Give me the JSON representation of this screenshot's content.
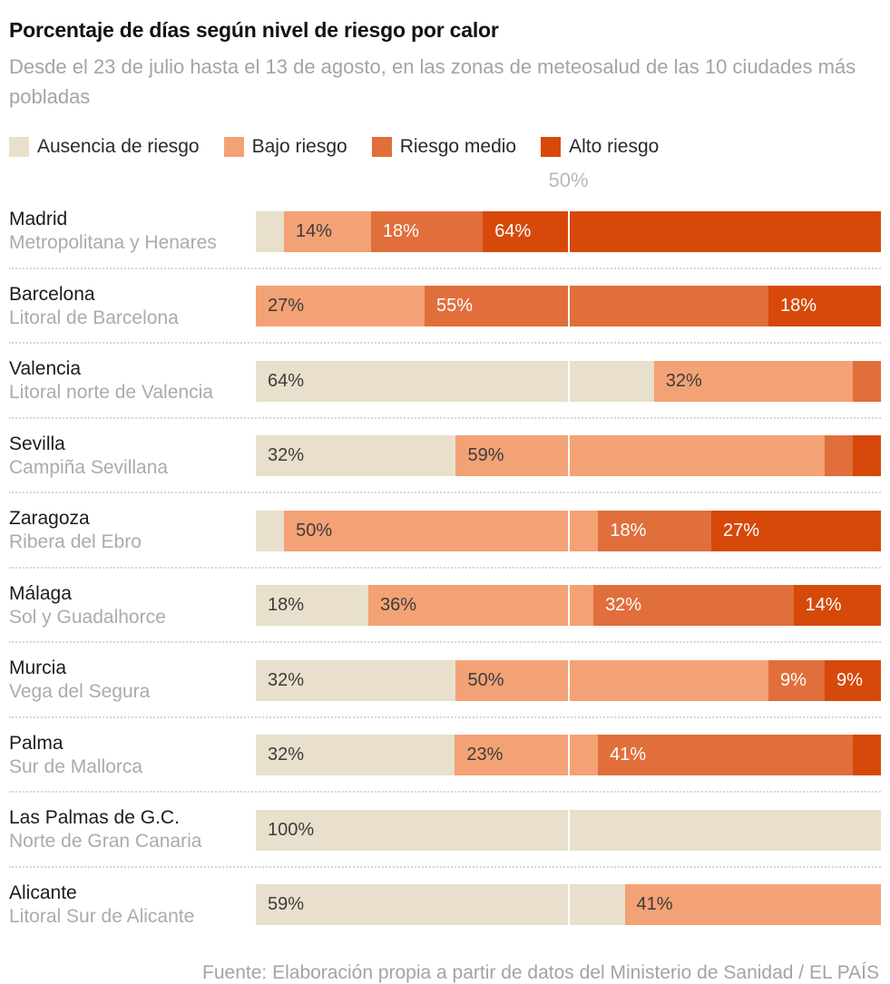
{
  "header": {
    "title": "Porcentaje de días según nivel de riesgo por calor",
    "subtitle": "Desde el 23 de julio hasta el 13 de agosto, en las zonas de meteosalud de las 10 ciudades más pobladas"
  },
  "legend": [
    {
      "key": "ausencia",
      "label": "Ausencia de riesgo",
      "color": "#e8e0cc",
      "text_color": "#3c3c3c"
    },
    {
      "key": "bajo",
      "label": "Bajo riesgo",
      "color": "#f3a275",
      "text_color": "#3c3c3c"
    },
    {
      "key": "medio",
      "label": "Riesgo medio",
      "color": "#e06f3c",
      "text_color": "#ffffff"
    },
    {
      "key": "alto",
      "label": "Alto riesgo",
      "color": "#d6490a",
      "text_color": "#ffffff"
    }
  ],
  "axis": {
    "tick_label": "50%",
    "tick_percent": 50,
    "xlim": [
      0,
      100
    ]
  },
  "chart_data": {
    "type": "bar",
    "stacked": true,
    "orientation": "horizontal",
    "unit": "percent",
    "title": "Porcentaje de días según nivel de riesgo por calor",
    "categories": [
      "Madrid",
      "Barcelona",
      "Valencia",
      "Sevilla",
      "Zaragoza",
      "Málaga",
      "Murcia",
      "Palma",
      "Las Palmas de G.C.",
      "Alicante"
    ],
    "levels": [
      "Ausencia de riesgo",
      "Bajo riesgo",
      "Riesgo medio",
      "Alto riesgo"
    ],
    "gridlines": [
      50
    ],
    "rows": [
      {
        "city": "Madrid",
        "zone": "Metropolitana y Henares",
        "segments": [
          {
            "level": "ausencia",
            "value": 4.5,
            "label": ""
          },
          {
            "level": "bajo",
            "value": 14,
            "label": "14%"
          },
          {
            "level": "medio",
            "value": 18,
            "label": "18%"
          },
          {
            "level": "alto",
            "value": 64,
            "label": "64%"
          }
        ]
      },
      {
        "city": "Barcelona",
        "zone": "Litoral de Barcelona",
        "segments": [
          {
            "level": "bajo",
            "value": 27,
            "label": "27%"
          },
          {
            "level": "medio",
            "value": 55,
            "label": "55%"
          },
          {
            "level": "alto",
            "value": 18,
            "label": "18%"
          }
        ]
      },
      {
        "city": "Valencia",
        "zone": "Litoral norte de Valencia",
        "segments": [
          {
            "level": "ausencia",
            "value": 64,
            "label": "64%"
          },
          {
            "level": "bajo",
            "value": 32,
            "label": "32%"
          },
          {
            "level": "medio",
            "value": 4.5,
            "label": ""
          }
        ]
      },
      {
        "city": "Sevilla",
        "zone": "Campiña Sevillana",
        "segments": [
          {
            "level": "ausencia",
            "value": 32,
            "label": "32%"
          },
          {
            "level": "bajo",
            "value": 59,
            "label": "59%"
          },
          {
            "level": "medio",
            "value": 4.5,
            "label": ""
          },
          {
            "level": "alto",
            "value": 4.5,
            "label": ""
          }
        ]
      },
      {
        "city": "Zaragoza",
        "zone": "Ribera del Ebro",
        "segments": [
          {
            "level": "ausencia",
            "value": 4.5,
            "label": ""
          },
          {
            "level": "bajo",
            "value": 50,
            "label": "50%"
          },
          {
            "level": "medio",
            "value": 18,
            "label": "18%"
          },
          {
            "level": "alto",
            "value": 27,
            "label": "27%"
          }
        ]
      },
      {
        "city": "Málaga",
        "zone": "Sol y Guadalhorce",
        "segments": [
          {
            "level": "ausencia",
            "value": 18,
            "label": "18%"
          },
          {
            "level": "bajo",
            "value": 36,
            "label": "36%"
          },
          {
            "level": "medio",
            "value": 32,
            "label": "32%"
          },
          {
            "level": "alto",
            "value": 14,
            "label": "14%"
          }
        ]
      },
      {
        "city": "Murcia",
        "zone": "Vega del Segura",
        "segments": [
          {
            "level": "ausencia",
            "value": 32,
            "label": "32%"
          },
          {
            "level": "bajo",
            "value": 50,
            "label": "50%"
          },
          {
            "level": "medio",
            "value": 9,
            "label": "9%"
          },
          {
            "level": "alto",
            "value": 9,
            "label": "9%"
          }
        ]
      },
      {
        "city": "Palma",
        "zone": "Sur de Mallorca",
        "segments": [
          {
            "level": "ausencia",
            "value": 32,
            "label": "32%"
          },
          {
            "level": "bajo",
            "value": 23,
            "label": "23%"
          },
          {
            "level": "medio",
            "value": 41,
            "label": "41%"
          },
          {
            "level": "alto",
            "value": 4.5,
            "label": ""
          }
        ]
      },
      {
        "city": "Las Palmas de G.C.",
        "zone": "Norte de Gran Canaria",
        "segments": [
          {
            "level": "ausencia",
            "value": 100,
            "label": "100%"
          }
        ]
      },
      {
        "city": "Alicante",
        "zone": "Litoral Sur de Alicante",
        "segments": [
          {
            "level": "ausencia",
            "value": 59,
            "label": "59%"
          },
          {
            "level": "bajo",
            "value": 41,
            "label": "41%"
          }
        ]
      }
    ]
  },
  "footer": {
    "source": "Fuente: Elaboración propia a partir de datos del Ministerio de Sanidad / EL PAÍS"
  }
}
